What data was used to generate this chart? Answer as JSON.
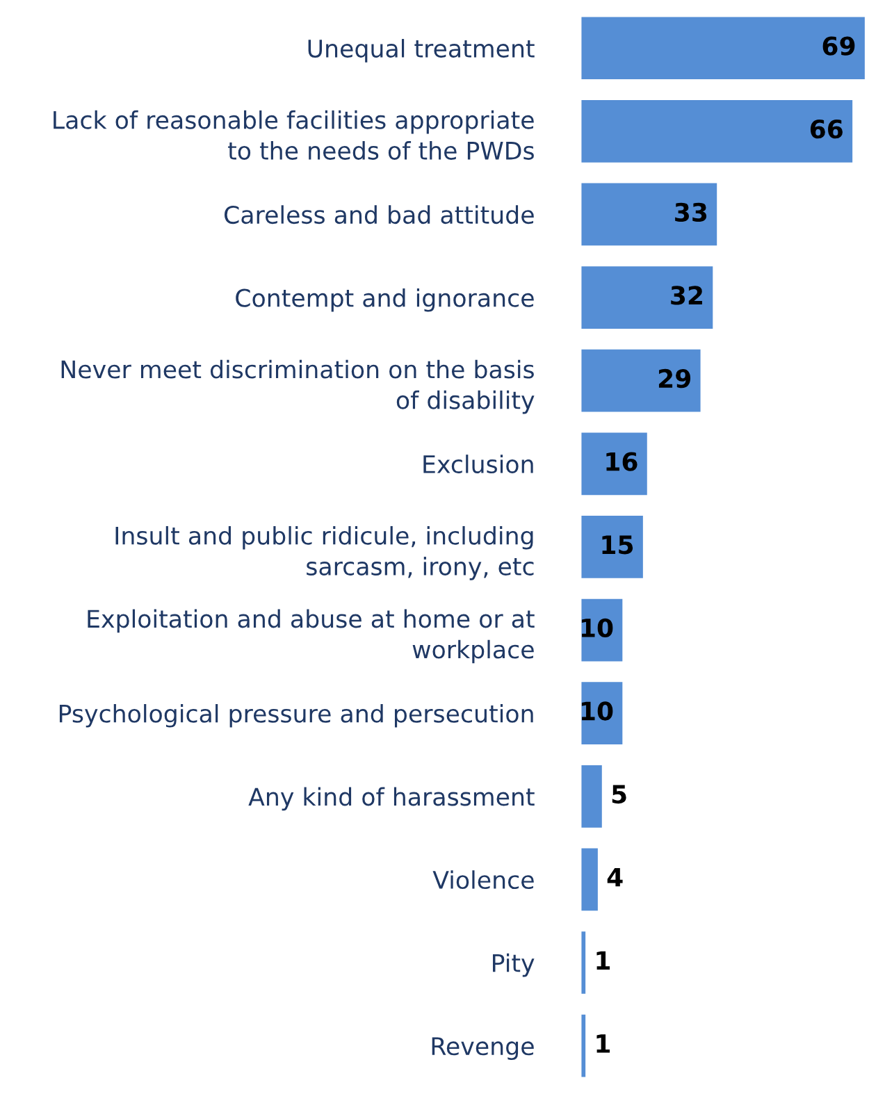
{
  "chart_data": {
    "type": "bar",
    "orientation": "horizontal",
    "data_labels": true,
    "color": "#558ed5",
    "categories": [
      "Unequal treatment",
      "Lack of reasonable facilities appropriate\nto the needs of the PWDs",
      "Careless and bad attitude",
      "Contempt and ignorance",
      "Never meet discrimination on the basis\nof disability",
      "Exclusion",
      "Insult and public ridicule, including\nsarcasm, irony, etc",
      "Exploitation and abuse at home or at\nworkplace",
      "Psychological pressure and persecution",
      "Any kind of harassment",
      "Violence",
      "Pity",
      "Revenge"
    ],
    "values": [
      69,
      66,
      33,
      32,
      29,
      16,
      15,
      10,
      10,
      5,
      4,
      1,
      1
    ]
  }
}
